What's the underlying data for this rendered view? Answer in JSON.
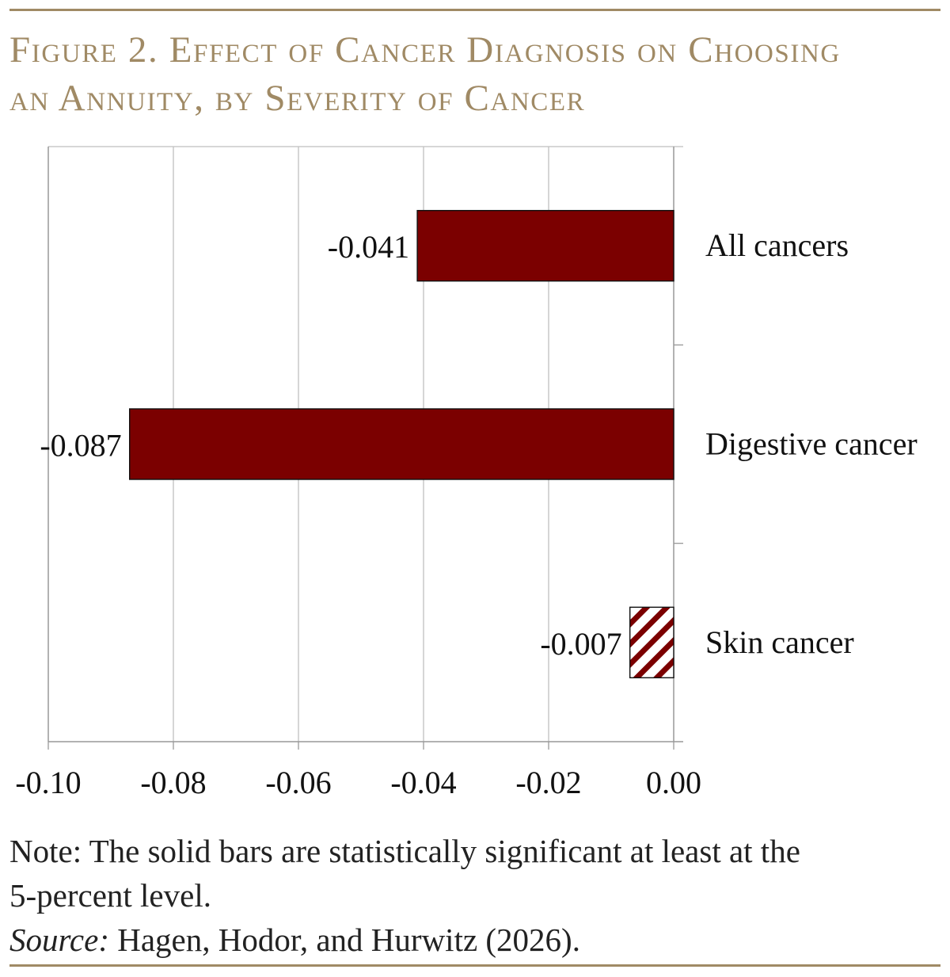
{
  "title": {
    "line1": "Figure 2. Effect of Cancer Diagnosis on Choosing",
    "line2": "an Annuity, by Severity of Cancer"
  },
  "colors": {
    "accent_rule": "#a08a65",
    "bar_fill": "#7b0000",
    "grid": "#bfbfbf",
    "axis": "#999999"
  },
  "chart_data": {
    "type": "bar",
    "orientation": "horizontal",
    "categories": [
      "All cancers",
      "Digestive cancer",
      "Skin cancer"
    ],
    "values": [
      -0.041,
      -0.087,
      -0.007
    ],
    "data_labels": [
      "-0.041",
      "-0.087",
      "-0.007"
    ],
    "significant": [
      true,
      true,
      false
    ],
    "bar_styles": [
      "solid",
      "solid",
      "hatched"
    ],
    "xlim": [
      -0.1,
      0.0
    ],
    "xticks": [
      -0.1,
      -0.08,
      -0.06,
      -0.04,
      -0.02,
      0.0
    ],
    "xtick_labels": [
      "-0.10",
      "-0.08",
      "-0.06",
      "-0.04",
      "-0.02",
      "0.00"
    ],
    "grid": true,
    "legend": "none",
    "category_labels_position": "right"
  },
  "notes": {
    "note_line1": "Note: The solid bars are statistically significant at least at the",
    "note_line2": "5-percent level.",
    "source_label": "Source:",
    "source_text": " Hagen, Hodor, and Hurwitz (2026)."
  }
}
